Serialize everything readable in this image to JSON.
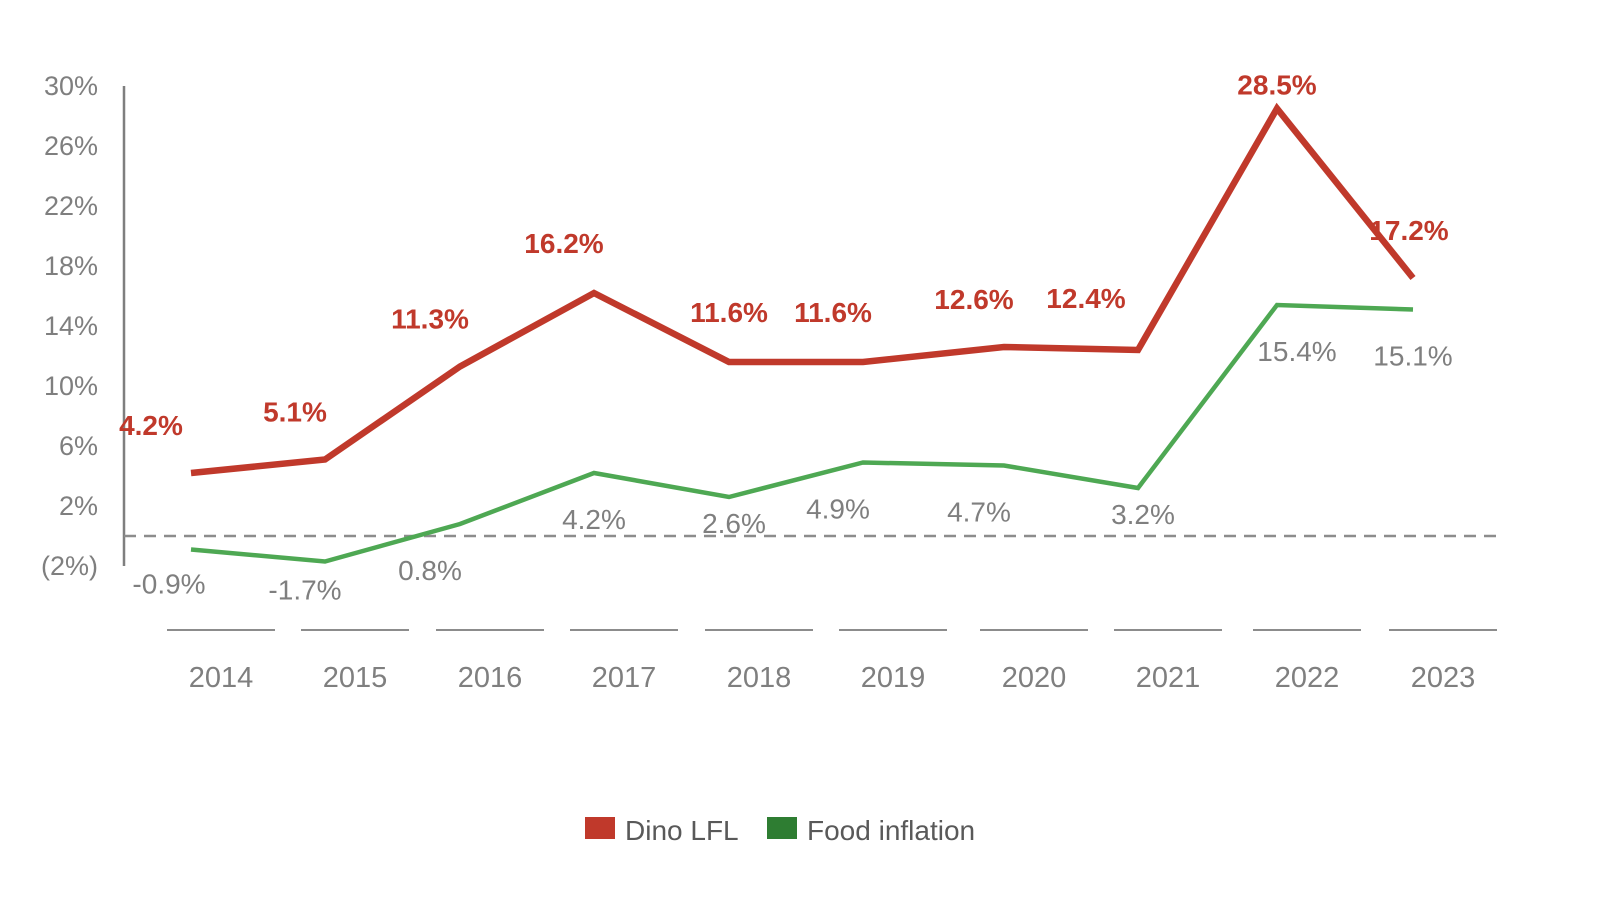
{
  "chart_data": {
    "type": "line",
    "title": "",
    "xlabel": "",
    "ylabel": "",
    "categories": [
      "2014",
      "2015",
      "2016",
      "2017",
      "2018",
      "2019",
      "2020",
      "2021",
      "2022",
      "2023"
    ],
    "y_ticks": [
      "30%",
      "26%",
      "22%",
      "18%",
      "14%",
      "10%",
      "6%",
      "2%",
      "(2%)"
    ],
    "ylim": [
      -2,
      30
    ],
    "reference_line": 0,
    "grid": false,
    "legend_position": "bottom",
    "series": [
      {
        "name": "Dino LFL",
        "color": "#c0392b",
        "values": [
          4.2,
          5.1,
          11.3,
          16.2,
          11.6,
          11.6,
          12.6,
          12.4,
          28.5,
          17.2
        ],
        "labels": [
          "4.2%",
          "5.1%",
          "11.3%",
          "16.2%",
          "11.6%",
          "11.6%",
          "12.6%",
          "12.4%",
          "28.5%",
          "17.2%"
        ]
      },
      {
        "name": "Food inflation",
        "color": "#4ea853",
        "legend_color": "#2e7d32",
        "values": [
          -0.9,
          -1.7,
          0.8,
          4.2,
          2.6,
          4.9,
          4.7,
          3.2,
          15.4,
          15.1
        ],
        "labels": [
          "-0.9%",
          "-1.7%",
          "0.8%",
          "4.2%",
          "2.6%",
          "4.9%",
          "4.7%",
          "3.2%",
          "15.4%",
          "15.1%"
        ]
      }
    ]
  }
}
